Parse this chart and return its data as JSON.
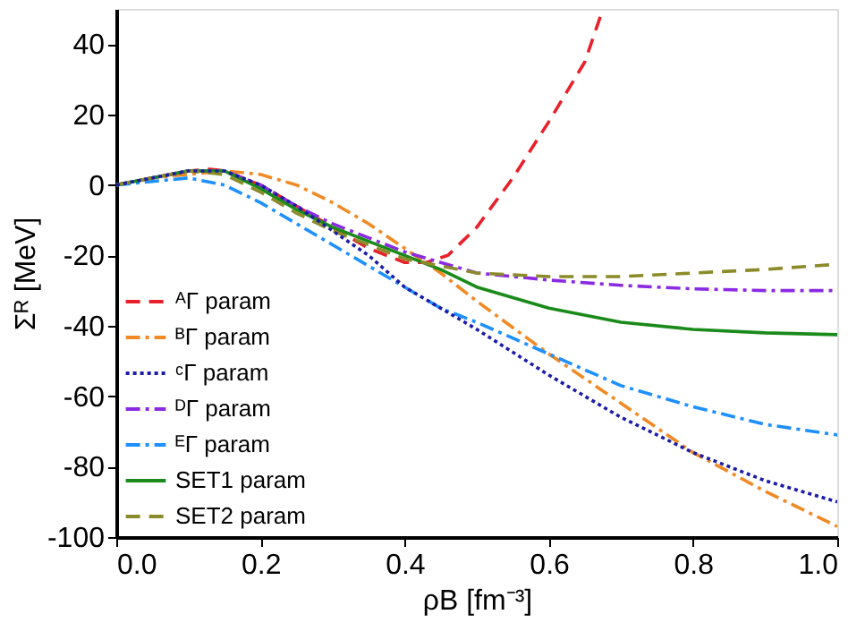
{
  "chart_data": {
    "type": "line",
    "xlabel": "ρB [fm⁻³]",
    "ylabel": "Σᴿ [MeV]",
    "xlim": [
      0,
      1
    ],
    "ylim": [
      -100,
      50
    ],
    "xticks": [
      {
        "value": 0,
        "label": "0.0"
      },
      {
        "value": 0.2,
        "label": "0.2"
      },
      {
        "value": 0.4,
        "label": "0.4"
      },
      {
        "value": 0.6,
        "label": "0.6"
      },
      {
        "value": 0.8,
        "label": "0.8"
      },
      {
        "value": 1,
        "label": "1.0"
      }
    ],
    "yticks": [
      -100,
      -80,
      -60,
      -40,
      -20,
      0,
      20,
      40
    ],
    "grid": false,
    "legend": "bottom left",
    "marker": "none",
    "x": [
      0,
      0.05,
      0.1,
      0.15,
      0.2,
      0.25,
      0.3,
      0.35,
      0.4,
      0.45,
      0.5,
      0.6,
      0.7,
      0.8,
      0.9,
      1.0
    ],
    "series": [
      {
        "name": "ᴬΓ param",
        "color": "#e8202a",
        "line_style": "dashed",
        "x": [
          0,
          0.05,
          0.1,
          0.13,
          0.15,
          0.2,
          0.25,
          0.3,
          0.35,
          0.4,
          0.43,
          0.46,
          0.5,
          0.55,
          0.6,
          0.65,
          0.675
        ],
        "values": [
          0,
          2,
          4,
          4.5,
          4,
          0,
          -6,
          -12,
          -18,
          -22,
          -22,
          -20,
          -12,
          2,
          18,
          35,
          50
        ]
      },
      {
        "name": "ᴮΓ param",
        "color": "#f08a24",
        "line_style": "dashdot",
        "values": [
          0,
          2,
          3,
          4,
          3,
          0,
          -5,
          -11,
          -18,
          -25,
          -33,
          -48,
          -62,
          -76,
          -87,
          -97
        ]
      },
      {
        "name": "ᶜΓ param",
        "color": "#1c1ca8",
        "line_style": "dotted",
        "values": [
          0,
          2,
          4,
          4,
          0,
          -6,
          -13,
          -20,
          -29,
          -35,
          -41,
          -54,
          -66,
          -76,
          -84,
          -90
        ]
      },
      {
        "name": "ᴰΓ param",
        "color": "#8a2be2",
        "line_style": "dashdot",
        "values": [
          0,
          2,
          4,
          4,
          0,
          -6,
          -11,
          -15,
          -19,
          -22,
          -25,
          -27,
          -28.5,
          -29.5,
          -30,
          -30
        ]
      },
      {
        "name": "ᴱΓ param",
        "color": "#1e90ff",
        "line_style": "dashdot",
        "values": [
          0,
          1,
          2,
          0,
          -5,
          -11,
          -17,
          -23,
          -29,
          -35,
          -39,
          -48,
          -57,
          -63,
          -68,
          -71
        ]
      },
      {
        "name": "SET1 param",
        "color": "#1a8a1a",
        "line_style": "solid",
        "values": [
          0,
          2,
          4,
          4,
          -1,
          -7,
          -12,
          -16,
          -20,
          -24,
          -29,
          -35,
          -39,
          -41,
          -42,
          -42.5
        ]
      },
      {
        "name": "SET2 param",
        "color": "#8b8b2a",
        "line_style": "dashed",
        "values": [
          0,
          2,
          4,
          3,
          -2,
          -8,
          -13,
          -17,
          -21,
          -23,
          -25,
          -26,
          -26,
          -25,
          -24,
          -22.5
        ]
      }
    ]
  }
}
